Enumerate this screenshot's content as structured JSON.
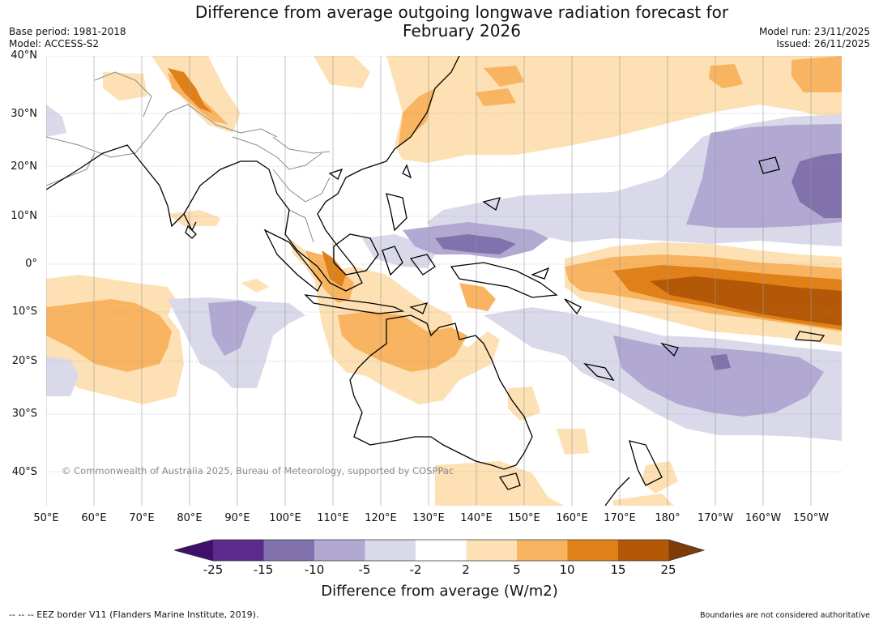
{
  "header": {
    "title": "Difference from average outgoing longwave radiation forecast for\nFebruary 2026",
    "base_period": "Base period: 1981-2018",
    "model": "Model: ACCESS-S2",
    "model_run": "Model run: 23/11/2025",
    "issued": "Issued: 26/11/2025"
  },
  "map": {
    "lat_labels": [
      "40°N",
      "30°N",
      "20°N",
      "10°N",
      "0°",
      "10°S",
      "20°S",
      "30°S",
      "40°S"
    ],
    "lon_labels": [
      "50°E",
      "60°E",
      "70°E",
      "80°E",
      "90°E",
      "100°E",
      "110°E",
      "120°E",
      "130°E",
      "140°E",
      "150°E",
      "160°E",
      "170°E",
      "180°",
      "170°W",
      "160°W",
      "150°W"
    ],
    "copyright": "© Commonwealth of Australia 2025, Bureau of Meteorology, supported by COSPPac"
  },
  "colorbar": {
    "ticks": [
      "-25",
      "-15",
      "-10",
      "-5",
      "-2",
      "2",
      "5",
      "10",
      "15",
      "25"
    ],
    "colors": [
      "#3f0f6b",
      "#5b2a8c",
      "#8171ad",
      "#b1a9d2",
      "#d9d9ea",
      "#ffffff",
      "#fde0b4",
      "#f8b460",
      "#e08018",
      "#b35806",
      "#7f3b08"
    ],
    "label": "Difference from average (W/m2)"
  },
  "footer": {
    "eez": "--  --  -- EEZ border V11 (Flanders Marine Institute, 2019).",
    "boundaries": "Boundaries are not considered authoritative"
  }
}
